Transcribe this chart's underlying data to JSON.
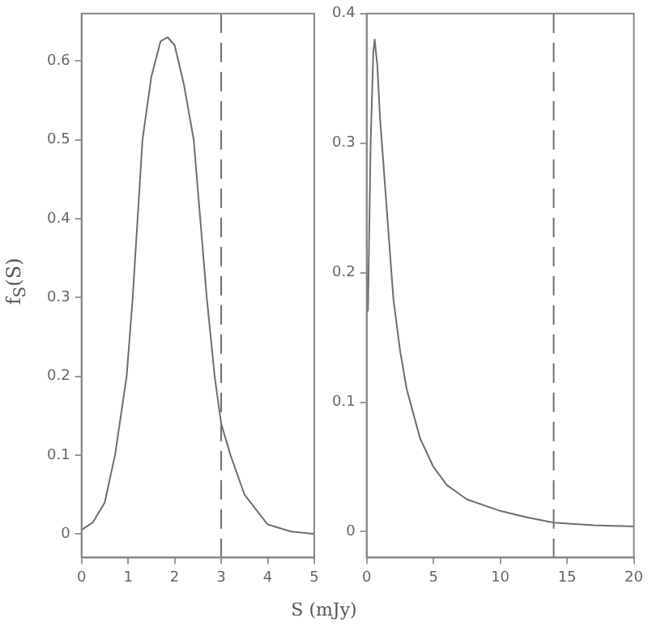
{
  "chart_data": [
    {
      "type": "line",
      "ylabel": "f$_{S}$(S)",
      "xlabel": "S (mJy)",
      "xlim": [
        0,
        5
      ],
      "xticks": [
        0,
        1,
        2,
        3,
        4,
        5
      ],
      "ylim": [
        -0.03,
        0.66
      ],
      "yticks": [
        0,
        0.1,
        0.2,
        0.3,
        0.4,
        0.5,
        0.6
      ],
      "grid": false,
      "legend": false,
      "marker": "none",
      "line_style": "solid",
      "series": [
        {
          "color": "#6e6e6e",
          "x": [
            0,
            0.25,
            0.5,
            0.72,
            0.97,
            1.1,
            1.31,
            1.5,
            1.7,
            1.85,
            2.0,
            2.2,
            2.41,
            2.69,
            2.86,
            3.0,
            3.2,
            3.5,
            4,
            4.5,
            5
          ],
          "values": [
            0.005,
            0.015,
            0.04,
            0.1,
            0.2,
            0.3,
            0.5,
            0.58,
            0.625,
            0.63,
            0.62,
            0.57,
            0.5,
            0.3,
            0.2,
            0.14,
            0.1,
            0.05,
            0.012,
            0.003,
            0
          ]
        }
      ],
      "ref_lines": [
        {
          "axis": "x",
          "value": 3,
          "color": "#6e6e6e",
          "line_style": "dashed"
        }
      ]
    },
    {
      "type": "line",
      "xlim": [
        0,
        20
      ],
      "xticks": [
        0,
        5,
        10,
        15,
        20
      ],
      "ylim": [
        -0.02,
        0.4
      ],
      "yticks": [
        0,
        0.1,
        0.2,
        0.3,
        0.4
      ],
      "grid": false,
      "legend": false,
      "marker": "none",
      "line_style": "solid",
      "series": [
        {
          "color": "#6e6e6e",
          "x": [
            0.1,
            0.3,
            0.5,
            0.6,
            0.8,
            1.0,
            1.5,
            2,
            2.5,
            3,
            4,
            5,
            6,
            7.5,
            10,
            12,
            14,
            17,
            20
          ],
          "values": [
            0.17,
            0.3,
            0.37,
            0.38,
            0.36,
            0.32,
            0.25,
            0.18,
            0.14,
            0.11,
            0.072,
            0.05,
            0.036,
            0.025,
            0.016,
            0.011,
            0.007,
            0.005,
            0.004
          ]
        }
      ],
      "ref_lines": [
        {
          "axis": "x",
          "value": 14,
          "color": "#6e6e6e",
          "line_style": "dashed"
        }
      ]
    }
  ]
}
